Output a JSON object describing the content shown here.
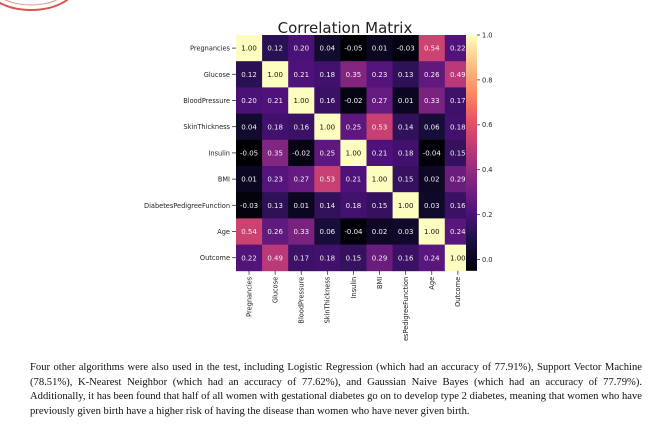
{
  "colors": {
    "logo_red": "#d9534f"
  },
  "chart_data": {
    "type": "heatmap",
    "title": "Correlation Matrix",
    "variables": [
      "Pregnancies",
      "Glucose",
      "BloodPressure",
      "SkinThickness",
      "Insulin",
      "BMI",
      "DiabetesPedigreeFunction",
      "Age",
      "Outcome"
    ],
    "x_tick_labels": [
      "Pregnancies",
      "Glucose",
      "BloodPressure",
      "SkinThickness",
      "Insulin",
      "BMI",
      "esPedigreeFunction",
      "Age",
      "Outcome"
    ],
    "matrix": [
      [
        1.0,
        0.12,
        0.2,
        0.04,
        -0.05,
        0.01,
        -0.03,
        0.54,
        0.22
      ],
      [
        0.12,
        1.0,
        0.21,
        0.18,
        0.35,
        0.23,
        0.13,
        0.26,
        0.49
      ],
      [
        0.2,
        0.21,
        1.0,
        0.16,
        -0.02,
        0.27,
        0.01,
        0.33,
        0.17
      ],
      [
        0.04,
        0.18,
        0.16,
        1.0,
        0.25,
        0.53,
        0.14,
        0.06,
        0.18
      ],
      [
        -0.05,
        0.35,
        -0.02,
        0.25,
        1.0,
        0.21,
        0.18,
        -0.04,
        0.15
      ],
      [
        0.01,
        0.23,
        0.27,
        0.53,
        0.21,
        1.0,
        0.15,
        0.02,
        0.29
      ],
      [
        -0.03,
        0.13,
        0.01,
        0.14,
        0.18,
        0.15,
        1.0,
        0.03,
        0.16
      ],
      [
        0.54,
        0.26,
        0.33,
        0.06,
        -0.04,
        0.02,
        0.03,
        1.0,
        0.24
      ],
      [
        0.22,
        0.49,
        0.17,
        0.18,
        0.15,
        0.29,
        0.16,
        0.24,
        1.0
      ]
    ],
    "colorbar": {
      "ticks": [
        "1.0",
        "0.8",
        "0.6",
        "0.4",
        "0.2",
        "0.0"
      ],
      "range": [
        -0.05,
        1.0
      ],
      "colormap": "magma"
    }
  },
  "body_text": "Four other algorithms were also used in the test, including Logistic Regression (which had an accuracy of 77.91%), Support Vector Machine (78.51%), K-Nearest Neighbor (which had an accuracy of 77.62%), and Gaussian Naive Bayes (which had an accuracy of 77.79%). Additionally, it has been found that half of all women with gestational diabetes go on to develop type 2 diabetes, meaning that women who have previously given birth have a higher risk of having the disease than women who have never given birth."
}
